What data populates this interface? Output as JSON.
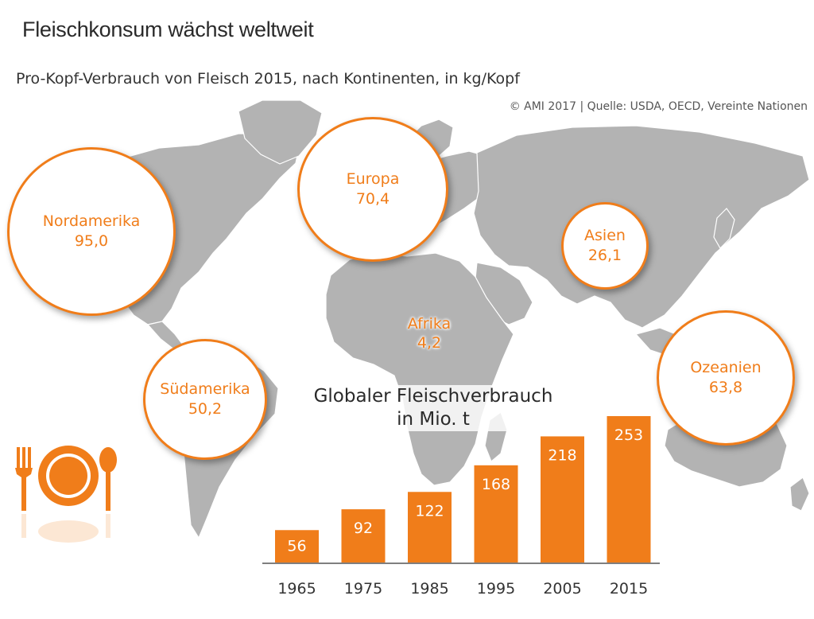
{
  "header": {
    "title": "Fleischkonsum wächst weltweit",
    "subtitle": "Pro-Kopf-Verbrauch von Fleisch 2015, nach Kontinenten, in kg/Kopf",
    "source": "© AMI 2017 | Quelle: USDA, OECD, Vereinte Nationen"
  },
  "continents": [
    {
      "name": "Nordamerika",
      "value": "95,0"
    },
    {
      "name": "Europa",
      "value": "70,4"
    },
    {
      "name": "Asien",
      "value": "26,1"
    },
    {
      "name": "Afrika",
      "value": "4,2"
    },
    {
      "name": "Südamerika",
      "value": "50,2"
    },
    {
      "name": "Ozeanien",
      "value": "63,8"
    }
  ],
  "icons": [
    "fork-icon",
    "plate-icon",
    "spoon-icon"
  ],
  "colors": {
    "accent": "#f07d1a",
    "map": "#b3b3b3",
    "text": "#333333"
  },
  "chart_data": {
    "type": "bar",
    "title": "Globaler Fleischverbrauch",
    "subtitle": "in Mio. t",
    "categories": [
      "1965",
      "1975",
      "1985",
      "1995",
      "2005",
      "2015"
    ],
    "values": [
      56,
      92,
      122,
      168,
      218,
      253
    ],
    "ylim": [
      0,
      253
    ]
  }
}
